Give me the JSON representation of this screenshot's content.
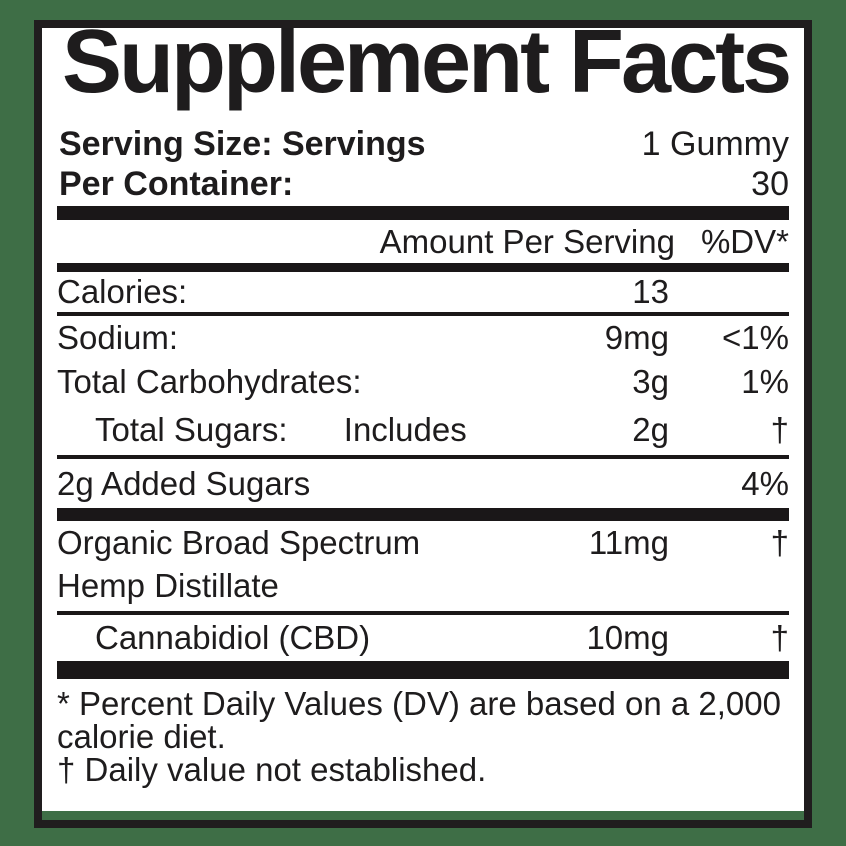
{
  "colors": {
    "background_green": "#3E6E46",
    "panel_white": "#FFFFFF",
    "ink_black": "#201D1E"
  },
  "header": {
    "title": "Supplement Facts",
    "serving_size_label": "Serving Size: Servings",
    "serving_size_value": "1 Gummy",
    "per_container_label": "Per Container:",
    "per_container_value": "30"
  },
  "table": {
    "amount_header": "Amount Per Serving",
    "dv_header": "%DV*",
    "rows": [
      {
        "label": "Calories:",
        "amount": "13",
        "dv": ""
      },
      {
        "label": "Sodium:",
        "amount": "9mg",
        "dv": "<1%"
      },
      {
        "label": "Total Carbohydrates:",
        "amount": "3g",
        "dv": "1%"
      },
      {
        "label": "Total Sugars:",
        "label2": "Includes",
        "amount": "2g",
        "dv": "†"
      },
      {
        "label": "2g Added Sugars",
        "amount": "",
        "dv": "4%"
      },
      {
        "label": "Organic Broad Spectrum",
        "label2": "Hemp Distillate",
        "amount": "11mg",
        "dv": "†"
      },
      {
        "label": "Cannabidiol (CBD)",
        "amount": "10mg",
        "dv": "†"
      }
    ]
  },
  "footnotes": [
    "* Percent Daily Values (DV) are based on a 2,000 calorie diet.",
    "† Daily value not established."
  ]
}
